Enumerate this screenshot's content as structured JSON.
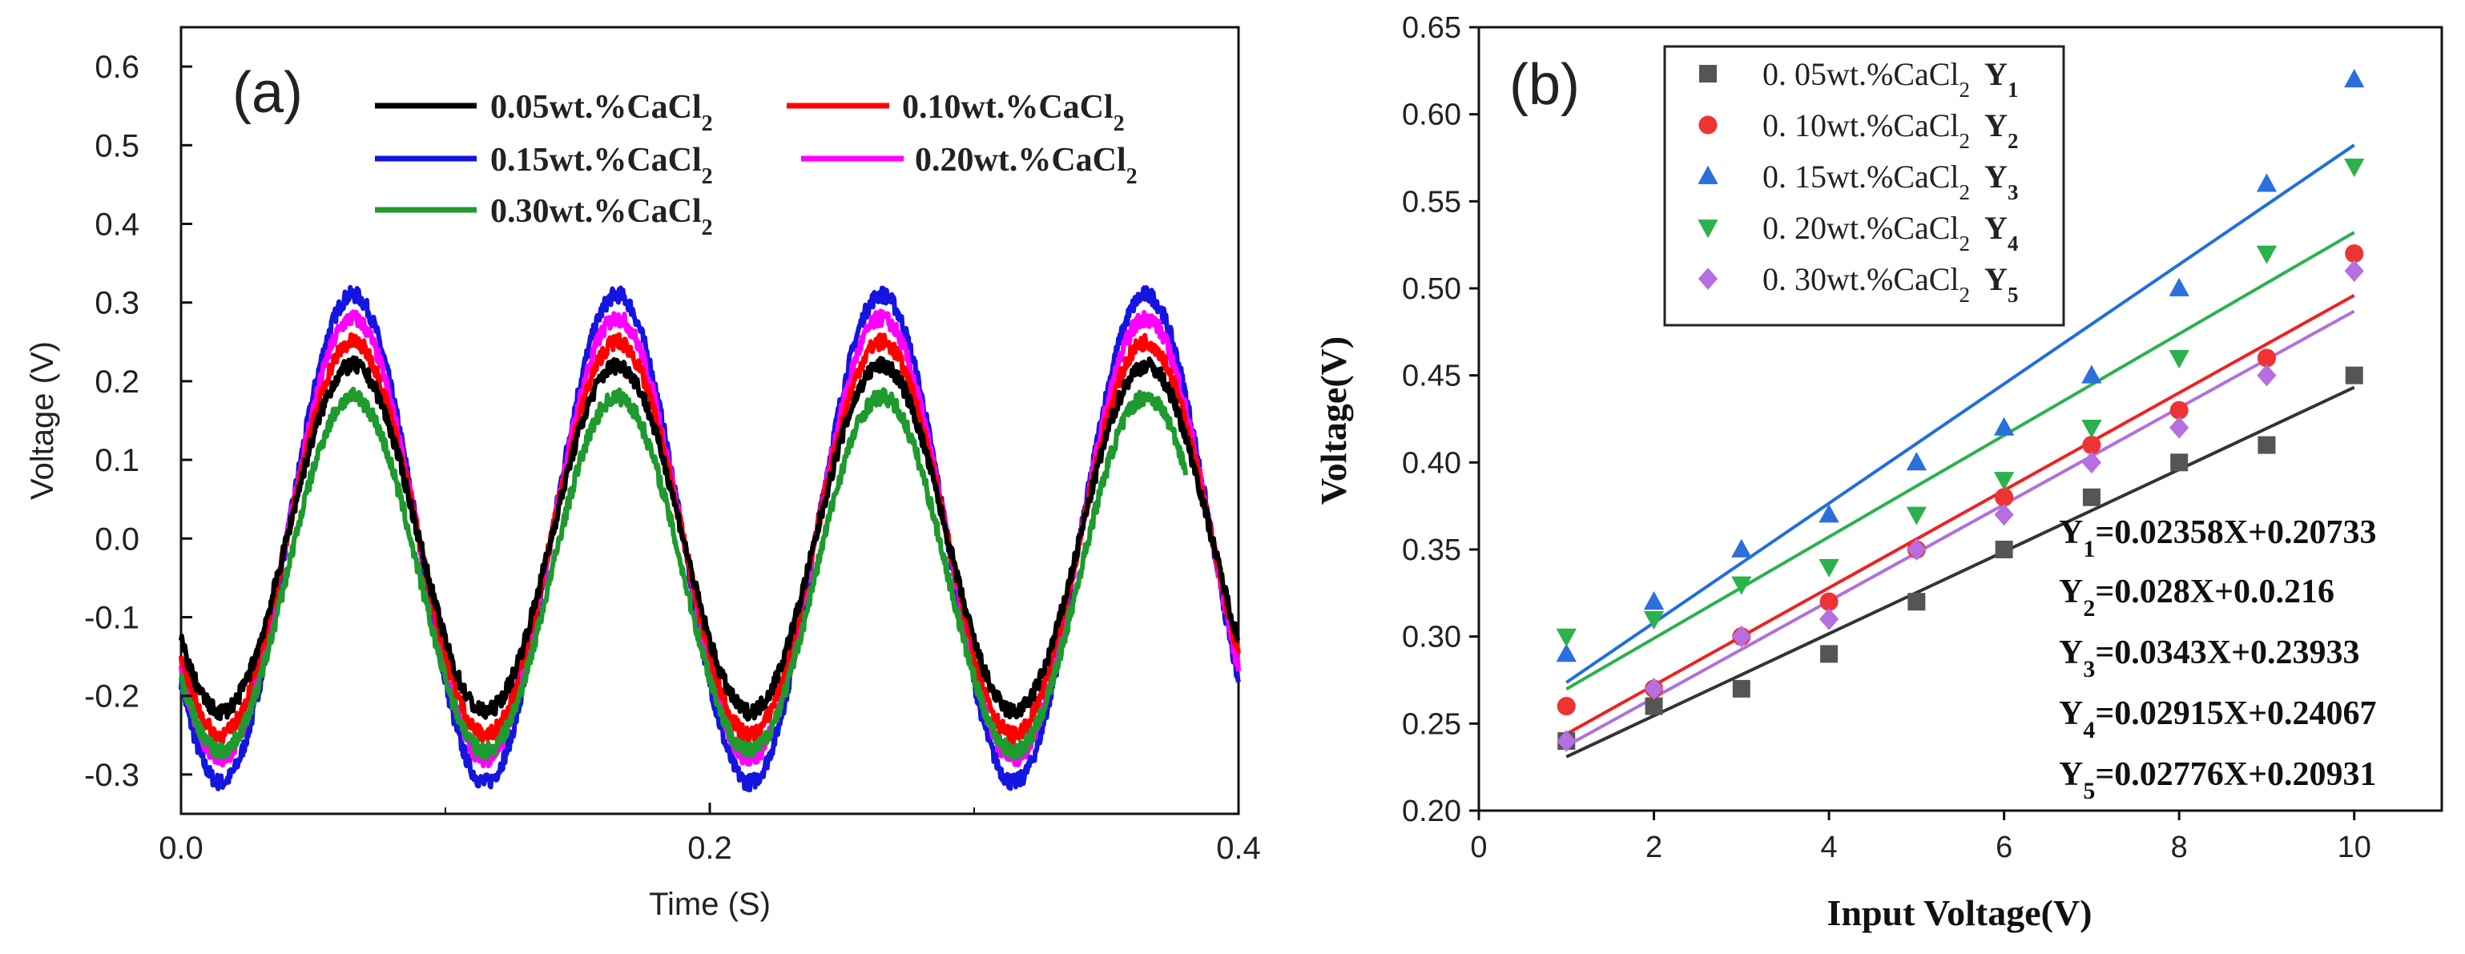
{
  "chart_data": [
    {
      "type": "line",
      "panel_label": "(a)",
      "xlabel": "Time (S)",
      "ylabel": "Voltage (V)",
      "xlim": [
        0.0,
        0.4
      ],
      "ylim": [
        -0.35,
        0.65
      ],
      "x_ticks": [
        "0.0",
        "0.2",
        "0.4"
      ],
      "y_ticks": [
        "-0.3",
        "-0.2",
        "-0.1",
        "0.0",
        "0.1",
        "0.2",
        "0.3",
        "0.4",
        "0.5",
        "0.6"
      ],
      "frequency_hz": 10,
      "legend_position": "top",
      "series": [
        {
          "name": "0.05wt.%CaCl",
          "sub": "2",
          "color": "#000000",
          "amplitude": 0.22,
          "offset": 0.0,
          "x_end": 0.4
        },
        {
          "name": "0.10wt.%CaCl",
          "sub": "2",
          "color": "#ff0000",
          "amplitude": 0.25,
          "offset": 0.0,
          "x_end": 0.4
        },
        {
          "name": "0.15wt.%CaCl",
          "sub": "2",
          "color": "#1515e0",
          "amplitude": 0.31,
          "offset": 0.0,
          "x_end": 0.4
        },
        {
          "name": "0.20wt.%CaCl",
          "sub": "2",
          "color": "#ff00ff",
          "amplitude": 0.28,
          "offset": 0.0,
          "x_end": 0.4
        },
        {
          "name": "0.30wt.%CaCl",
          "sub": "2",
          "color": "#1e9a2e",
          "amplitude": 0.225,
          "offset": -0.045,
          "x_end": 0.38
        }
      ]
    },
    {
      "type": "scatter",
      "panel_label": "(b)",
      "xlabel": "Input Voltage(V)",
      "ylabel": "Voltage(V)",
      "xlim": [
        0,
        11
      ],
      "ylim": [
        0.2,
        0.65
      ],
      "x_ticks": [
        "0",
        "2",
        "4",
        "6",
        "8",
        "10"
      ],
      "y_ticks": [
        "0.20",
        "0.25",
        "0.30",
        "0.35",
        "0.40",
        "0.45",
        "0.50",
        "0.55",
        "0.60",
        "0.65"
      ],
      "legend_position": "top-left",
      "x": [
        1,
        2,
        3,
        4,
        5,
        6,
        7,
        8,
        9,
        10
      ],
      "series": [
        {
          "name": "0. 05wt.%CaCl",
          "sub": "2",
          "yname": "Y",
          "ysub": "1",
          "color": "#555555",
          "marker": "square",
          "values": [
            0.24,
            0.26,
            0.27,
            0.29,
            0.32,
            0.35,
            0.38,
            0.4,
            0.41,
            0.45
          ],
          "fit": {
            "slope": 0.02358,
            "intercept": 0.20733
          }
        },
        {
          "name": "0. 10wt.%CaCl",
          "sub": "2",
          "yname": "Y",
          "ysub": "2",
          "color": "#ee3333",
          "marker": "circle",
          "values": [
            0.26,
            0.27,
            0.3,
            0.32,
            0.35,
            0.38,
            0.41,
            0.43,
            0.46,
            0.52
          ],
          "fit": {
            "slope": 0.028,
            "intercept": 0.216
          }
        },
        {
          "name": "0. 15wt.%CaCl",
          "sub": "2",
          "yname": "Y",
          "ysub": "3",
          "color": "#2a6fdb",
          "marker": "triangle-up",
          "values": [
            0.29,
            0.32,
            0.35,
            0.37,
            0.4,
            0.42,
            0.45,
            0.5,
            0.56,
            0.62
          ],
          "fit": {
            "slope": 0.0343,
            "intercept": 0.23933
          }
        },
        {
          "name": "0. 20wt.%CaCl",
          "sub": "2",
          "yname": "Y",
          "ysub": "4",
          "color": "#2bb24c",
          "marker": "triangle-down",
          "values": [
            0.3,
            0.31,
            0.33,
            0.34,
            0.37,
            0.39,
            0.42,
            0.46,
            0.52,
            0.57
          ],
          "fit": {
            "slope": 0.02915,
            "intercept": 0.24067
          }
        },
        {
          "name": "0. 30wt.%CaCl",
          "sub": "2",
          "yname": "Y",
          "ysub": "5",
          "color": "#b56fe0",
          "marker": "diamond",
          "values": [
            0.24,
            0.27,
            0.3,
            0.31,
            0.35,
            0.37,
            0.4,
            0.42,
            0.45,
            0.51
          ],
          "fit": {
            "slope": 0.02776,
            "intercept": 0.20931
          }
        }
      ],
      "fit_line_colors": [
        "#333333",
        "#ee2222",
        "#1f6fdb",
        "#2bb24c",
        "#b070e0"
      ],
      "annotations": [
        {
          "label": "Y",
          "sub": "1",
          "text": "=0.02358X+0.20733"
        },
        {
          "label": "Y",
          "sub": "2",
          "text": "=0.028X+0.0.216"
        },
        {
          "label": "Y",
          "sub": "3",
          "text": "=0.0343X+0.23933"
        },
        {
          "label": "Y",
          "sub": "4",
          "text": "=0.02915X+0.24067"
        },
        {
          "label": "Y",
          "sub": "5",
          "text": "=0.02776X+0.20931"
        }
      ]
    }
  ]
}
